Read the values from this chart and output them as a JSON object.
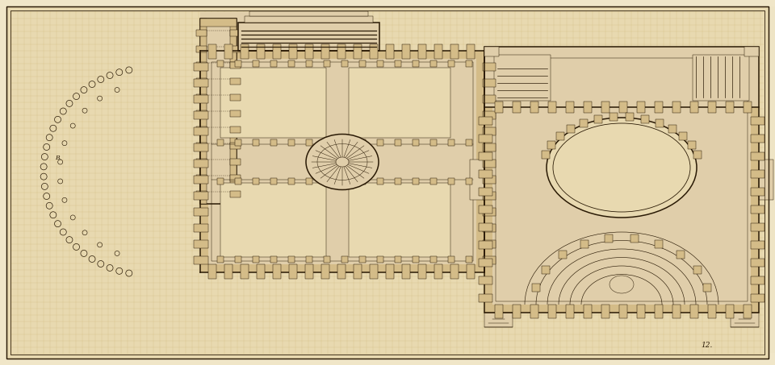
{
  "bg_outer": "#f0e6c8",
  "bg_paper": "#e8d9b0",
  "bg_paper2": "#ddd0a0",
  "line_color": "#2a1a05",
  "fill_wall": "#c4a870",
  "fill_tan": "#d4bc88",
  "fill_light": "#e0ceaa",
  "grid_color": "#c0a860",
  "figsize": [
    9.6,
    4.53
  ],
  "dpi": 100,
  "note_text": "12.",
  "lw_main": 0.6,
  "lw_thick": 1.1,
  "lw_thin": 0.35
}
